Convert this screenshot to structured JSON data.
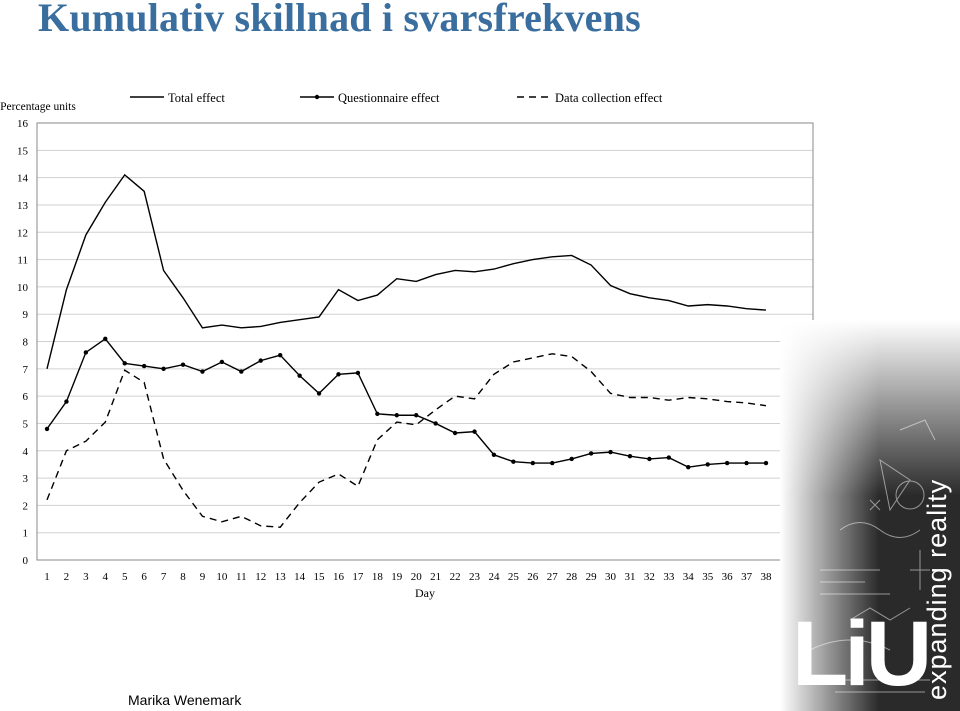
{
  "slide": {
    "title": "Kumulativ skillnad i svarsfrekvens",
    "author": "Marika Wenemark"
  },
  "brand": {
    "logo_text": "LiU",
    "tagline": "expanding reality",
    "colors": {
      "title": "#3a6e9e",
      "panel_dark": "#2a2a2a"
    }
  },
  "chart_data": {
    "type": "line",
    "title": "",
    "xlabel": "Day",
    "ylabel": "Percentage units",
    "x": [
      1,
      2,
      3,
      4,
      5,
      6,
      7,
      8,
      9,
      10,
      11,
      12,
      13,
      14,
      15,
      16,
      17,
      18,
      19,
      20,
      21,
      22,
      23,
      24,
      25,
      26,
      27,
      28,
      29,
      30,
      31,
      32,
      33,
      34,
      35,
      36,
      37,
      38
    ],
    "ylim": [
      0,
      16
    ],
    "yticks": [
      0,
      1,
      2,
      3,
      4,
      5,
      6,
      7,
      8,
      9,
      10,
      11,
      12,
      13,
      14,
      15,
      16
    ],
    "grid": true,
    "legend_position": "top",
    "series": [
      {
        "name": "Total effect",
        "style": "solid",
        "values": [
          7.0,
          9.9,
          11.9,
          13.1,
          14.1,
          13.5,
          10.6,
          9.6,
          8.5,
          8.6,
          8.5,
          8.55,
          8.7,
          8.8,
          8.9,
          9.9,
          9.5,
          9.7,
          10.3,
          10.2,
          10.45,
          10.6,
          10.55,
          10.65,
          10.85,
          11.0,
          11.1,
          11.15,
          10.8,
          10.05,
          9.75,
          9.6,
          9.5,
          9.3,
          9.35,
          9.3,
          9.2,
          9.15
        ]
      },
      {
        "name": "Questionnaire effect",
        "style": "solid-markers",
        "values": [
          4.8,
          5.8,
          7.6,
          8.1,
          7.2,
          7.1,
          7.0,
          7.15,
          6.9,
          7.25,
          6.9,
          7.3,
          7.5,
          6.75,
          6.1,
          6.8,
          6.85,
          5.35,
          5.3,
          5.3,
          5.0,
          4.65,
          4.7,
          3.85,
          3.6,
          3.55,
          3.55,
          3.7,
          3.9,
          3.95,
          3.8,
          3.7,
          3.75,
          3.4,
          3.5,
          3.55,
          3.55,
          3.55
        ]
      },
      {
        "name": "Data collection effect",
        "style": "dashed",
        "values": [
          2.2,
          4.0,
          4.35,
          5.05,
          6.95,
          6.5,
          3.7,
          2.55,
          1.6,
          1.4,
          1.6,
          1.25,
          1.2,
          2.1,
          2.85,
          3.15,
          2.7,
          4.4,
          5.05,
          4.95,
          5.5,
          6.0,
          5.9,
          6.8,
          7.25,
          7.4,
          7.55,
          7.45,
          6.9,
          6.1,
          5.95,
          5.95,
          5.85,
          5.95,
          5.9,
          5.8,
          5.75,
          5.65
        ]
      }
    ]
  }
}
